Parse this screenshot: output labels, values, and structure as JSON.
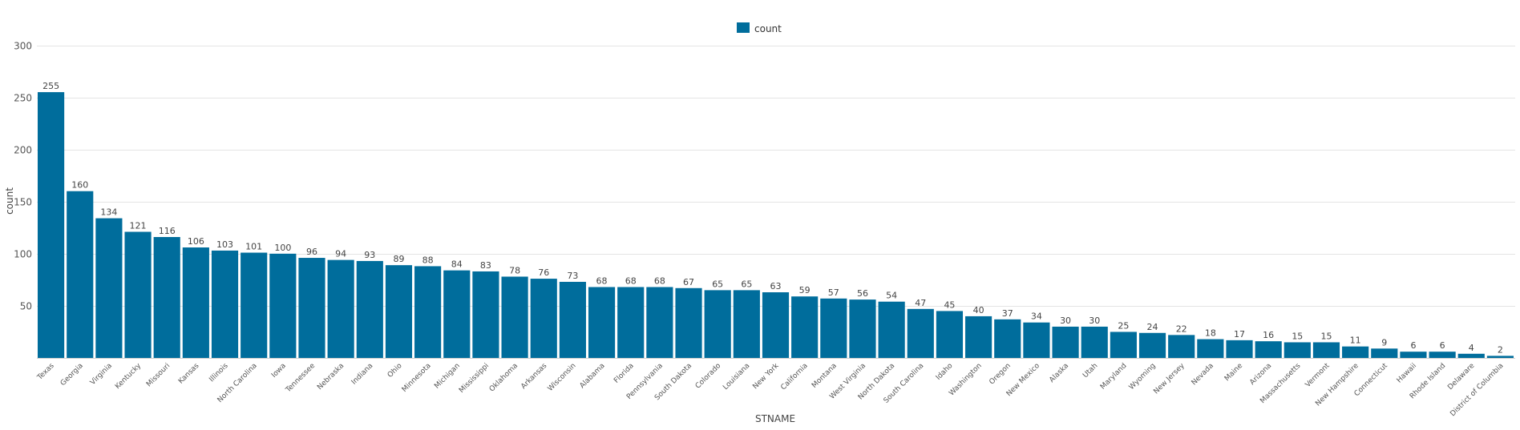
{
  "chart_data": {
    "type": "bar",
    "xlabel": "STNAME",
    "ylabel": "count",
    "ylim": [
      0,
      300
    ],
    "yticks": [
      50,
      100,
      150,
      200,
      250,
      300
    ],
    "grid": true,
    "legend": {
      "position": "top-center",
      "entries": [
        "count"
      ]
    },
    "colors": {
      "bar": "#006d9c",
      "grid": "#e4e4e4"
    },
    "categories": [
      "Texas",
      "Georgia",
      "Virginia",
      "Kentucky",
      "Missouri",
      "Kansas",
      "Illinois",
      "North Carolina",
      "Iowa",
      "Tennessee",
      "Nebraska",
      "Indiana",
      "Ohio",
      "Minnesota",
      "Michigan",
      "Mississippi",
      "Oklahoma",
      "Arkansas",
      "Wisconsin",
      "Alabama",
      "Florida",
      "Pennsylvania",
      "South Dakota",
      "Colorado",
      "Louisiana",
      "New York",
      "California",
      "Montana",
      "West Virginia",
      "North Dakota",
      "South Carolina",
      "Idaho",
      "Washington",
      "Oregon",
      "New Mexico",
      "Alaska",
      "Utah",
      "Maryland",
      "Wyoming",
      "New Jersey",
      "Nevada",
      "Maine",
      "Arizona",
      "Massachusetts",
      "Vermont",
      "New Hampshire",
      "Connecticut",
      "Hawaii",
      "Rhode Island",
      "Delaware",
      "District of Columbia"
    ],
    "series": [
      {
        "name": "count",
        "values": [
          255,
          160,
          134,
          121,
          116,
          106,
          103,
          101,
          100,
          96,
          94,
          93,
          89,
          88,
          84,
          83,
          78,
          76,
          73,
          68,
          68,
          68,
          67,
          65,
          65,
          63,
          59,
          57,
          56,
          54,
          47,
          45,
          40,
          37,
          34,
          30,
          30,
          25,
          24,
          22,
          18,
          17,
          16,
          15,
          15,
          11,
          9,
          6,
          6,
          4,
          2
        ]
      }
    ]
  }
}
